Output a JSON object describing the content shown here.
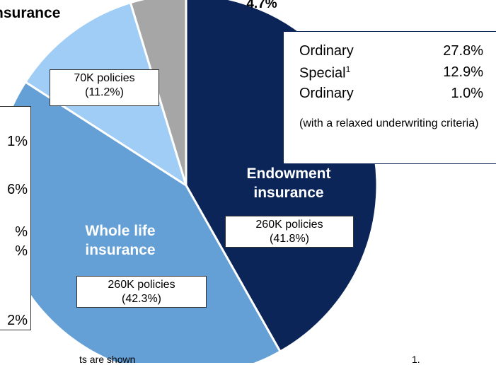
{
  "chart_data": {
    "type": "pie",
    "categories": [
      "Endowment insurance",
      "Whole life insurance",
      "nsurance",
      null
    ],
    "values": [
      41.8,
      42.3,
      11.2,
      4.7
    ],
    "value_labels": [
      "(41.8%)",
      "(42.3%)",
      "(11.2%)",
      "4.7%"
    ],
    "policies": [
      "260K policies",
      "260K policies",
      "70K policies",
      null
    ],
    "colors": [
      "#0b2559",
      "#64a0d6",
      "#9fcdf6",
      "#a6a6a6"
    ],
    "endowment_breakdown": [
      {
        "label": "Ordinary",
        "value": "27.8%"
      },
      {
        "label": "Special",
        "sup": "1",
        "value": "12.9%"
      },
      {
        "label": "Ordinary",
        "value": "1.0%"
      }
    ],
    "endowment_note": "(with a relaxed underwriting criteria)",
    "left_box_lines": [
      "1%",
      "6%",
      "%",
      "%",
      "2%"
    ],
    "footnotes": [
      "ts are shown",
      "1."
    ]
  }
}
